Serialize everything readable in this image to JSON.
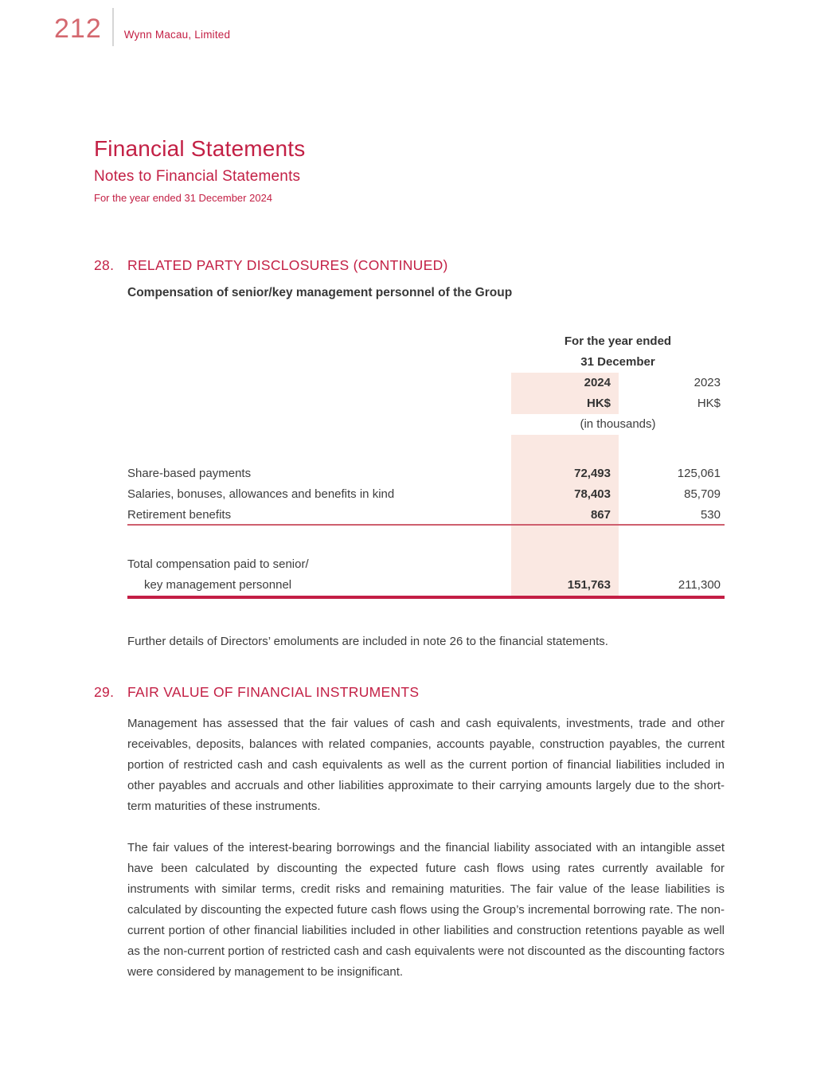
{
  "running_header": {
    "page_number": "212",
    "company": "Wynn Macau, Limited"
  },
  "title_block": {
    "title": "Financial Statements",
    "subtitle": "Notes to Financial Statements",
    "period": "For the year ended 31 December 2024"
  },
  "section28": {
    "number": "28.",
    "title": "RELATED PARTY DISCLOSURES ",
    "title_suffix": "(CONTINUED)",
    "subheading": "Compensation of senior/key management personnel of the Group",
    "table": {
      "header_line1": "For the year ended",
      "header_line2": "31 December",
      "year_current": "2024",
      "year_prior": "2023",
      "currency_current": "HK$",
      "currency_prior": "HK$",
      "unit_note": "(in thousands)",
      "rows": [
        {
          "label": "Share-based payments",
          "v2024": "72,493",
          "v2023": "125,061"
        },
        {
          "label": "Salaries, bonuses, allowances and benefits in kind",
          "v2024": "78,403",
          "v2023": "85,709"
        },
        {
          "label": "Retirement benefits",
          "v2024": "867",
          "v2023": "530"
        }
      ],
      "total": {
        "label_line1": "Total compensation paid to senior/",
        "label_line2": "key management personnel",
        "v2024": "151,763",
        "v2023": "211,300"
      }
    },
    "note": "Further details of Directors’ emoluments are included in note 26 to the financial statements."
  },
  "section29": {
    "number": "29.",
    "title": "FAIR VALUE OF FINANCIAL INSTRUMENTS",
    "paragraphs": [
      "Management has assessed that the fair values of cash and cash equivalents, investments, trade and other receivables, deposits, balances with related companies, accounts payable, construction payables, the current portion of restricted cash and cash equivalents as well as the current portion of financial liabilities included in other payables and accruals and other liabilities approximate to their carrying amounts largely due to the short-term maturities of these instruments.",
      "The fair values of the interest-bearing borrowings and the financial liability associated with an intangible asset have been calculated by discounting the expected future cash flows using rates currently available for instruments with similar terms, credit risks and remaining maturities. The fair value of the lease liabilities is calculated by discounting the expected future cash flows using the Group’s incremental borrowing rate. The non-current portion of other financial liabilities included in other liabilities and construction retentions payable as well as the non-current portion of restricted cash and cash equivalents were not discounted as the discounting factors were considered by management to be insignificant."
    ]
  },
  "colors": {
    "crimson": "#c32045",
    "page_number_red": "#d4686f",
    "highlight_pink": "#fae8e2",
    "rule_thin": "#ce5f6e",
    "rule_thick": "#c31e45",
    "body_text": "#3d3d3d"
  }
}
